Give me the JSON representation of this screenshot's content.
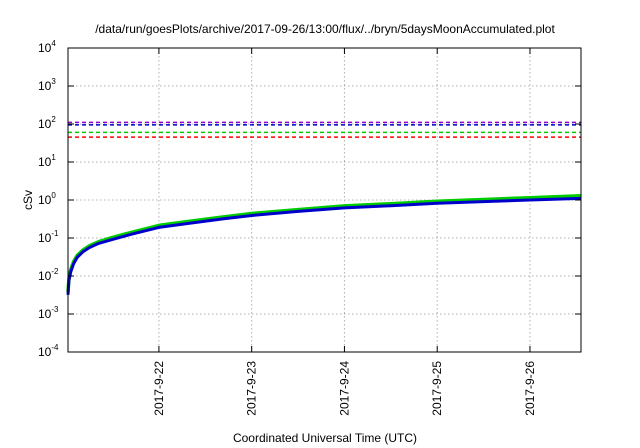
{
  "chart_data": {
    "type": "line",
    "title": "/data/run/goesPlots/archive/2017-09-26/13:00/flux/../bryn/5daysMoonAccumulated.plot",
    "xlabel": "Coordinated Universal Time (UTC)",
    "ylabel": "cSv",
    "yscale": "log",
    "ylim_exponents": [
      -4,
      4
    ],
    "y_ticks": [
      {
        "base": "10",
        "exp": "-4",
        "value_exp": -4
      },
      {
        "base": "10",
        "exp": "-3",
        "value_exp": -3
      },
      {
        "base": "10",
        "exp": "-2",
        "value_exp": -2
      },
      {
        "base": "10",
        "exp": "-1",
        "value_exp": -1
      },
      {
        "base": "10",
        "exp": "0",
        "value_exp": 0
      },
      {
        "base": "10",
        "exp": "1",
        "value_exp": 1
      },
      {
        "base": "10",
        "exp": "2",
        "value_exp": 2
      },
      {
        "base": "10",
        "exp": "3",
        "value_exp": 3
      },
      {
        "base": "10",
        "exp": "4",
        "value_exp": 4
      }
    ],
    "x_ticks": [
      {
        "label": "2017-9-22",
        "day": 22
      },
      {
        "label": "2017-9-23",
        "day": 23
      },
      {
        "label": "2017-9-24",
        "day": 24
      },
      {
        "label": "2017-9-25",
        "day": 25
      },
      {
        "label": "2017-9-26",
        "day": 26
      }
    ],
    "xlim_days": [
      21.02,
      26.55
    ],
    "grid": true,
    "reference_lines": [
      {
        "color": "#9400d3",
        "value": 110
      },
      {
        "color": "#0000cc",
        "value": 95
      },
      {
        "color": "#00cc00",
        "value": 60
      },
      {
        "color": "#ff0000",
        "value": 45
      }
    ],
    "series": [
      {
        "color": "#00cc00",
        "width": 3.5,
        "x": [
          21.02,
          21.03,
          21.05,
          21.08,
          21.12,
          21.18,
          21.25,
          21.35,
          21.5,
          21.7,
          22.0,
          22.3,
          22.7,
          23.0,
          23.5,
          24.0,
          24.5,
          25.0,
          25.5,
          26.0,
          26.55
        ],
        "y": [
          0.0038,
          0.0085,
          0.015,
          0.024,
          0.035,
          0.048,
          0.062,
          0.08,
          0.104,
          0.14,
          0.215,
          0.27,
          0.36,
          0.44,
          0.56,
          0.7,
          0.8,
          0.93,
          1.03,
          1.15,
          1.3
        ]
      },
      {
        "color": "#0000cc",
        "width": 3,
        "x": [
          21.02,
          21.03,
          21.05,
          21.08,
          21.12,
          21.18,
          21.25,
          21.35,
          21.5,
          21.7,
          22.0,
          22.3,
          22.7,
          23.0,
          23.5,
          24.0,
          24.5,
          25.0,
          25.5,
          26.0,
          26.55
        ],
        "y": [
          0.0032,
          0.0075,
          0.013,
          0.021,
          0.031,
          0.043,
          0.056,
          0.072,
          0.092,
          0.125,
          0.19,
          0.24,
          0.32,
          0.39,
          0.5,
          0.62,
          0.71,
          0.82,
          0.91,
          1.0,
          1.1
        ]
      }
    ]
  }
}
